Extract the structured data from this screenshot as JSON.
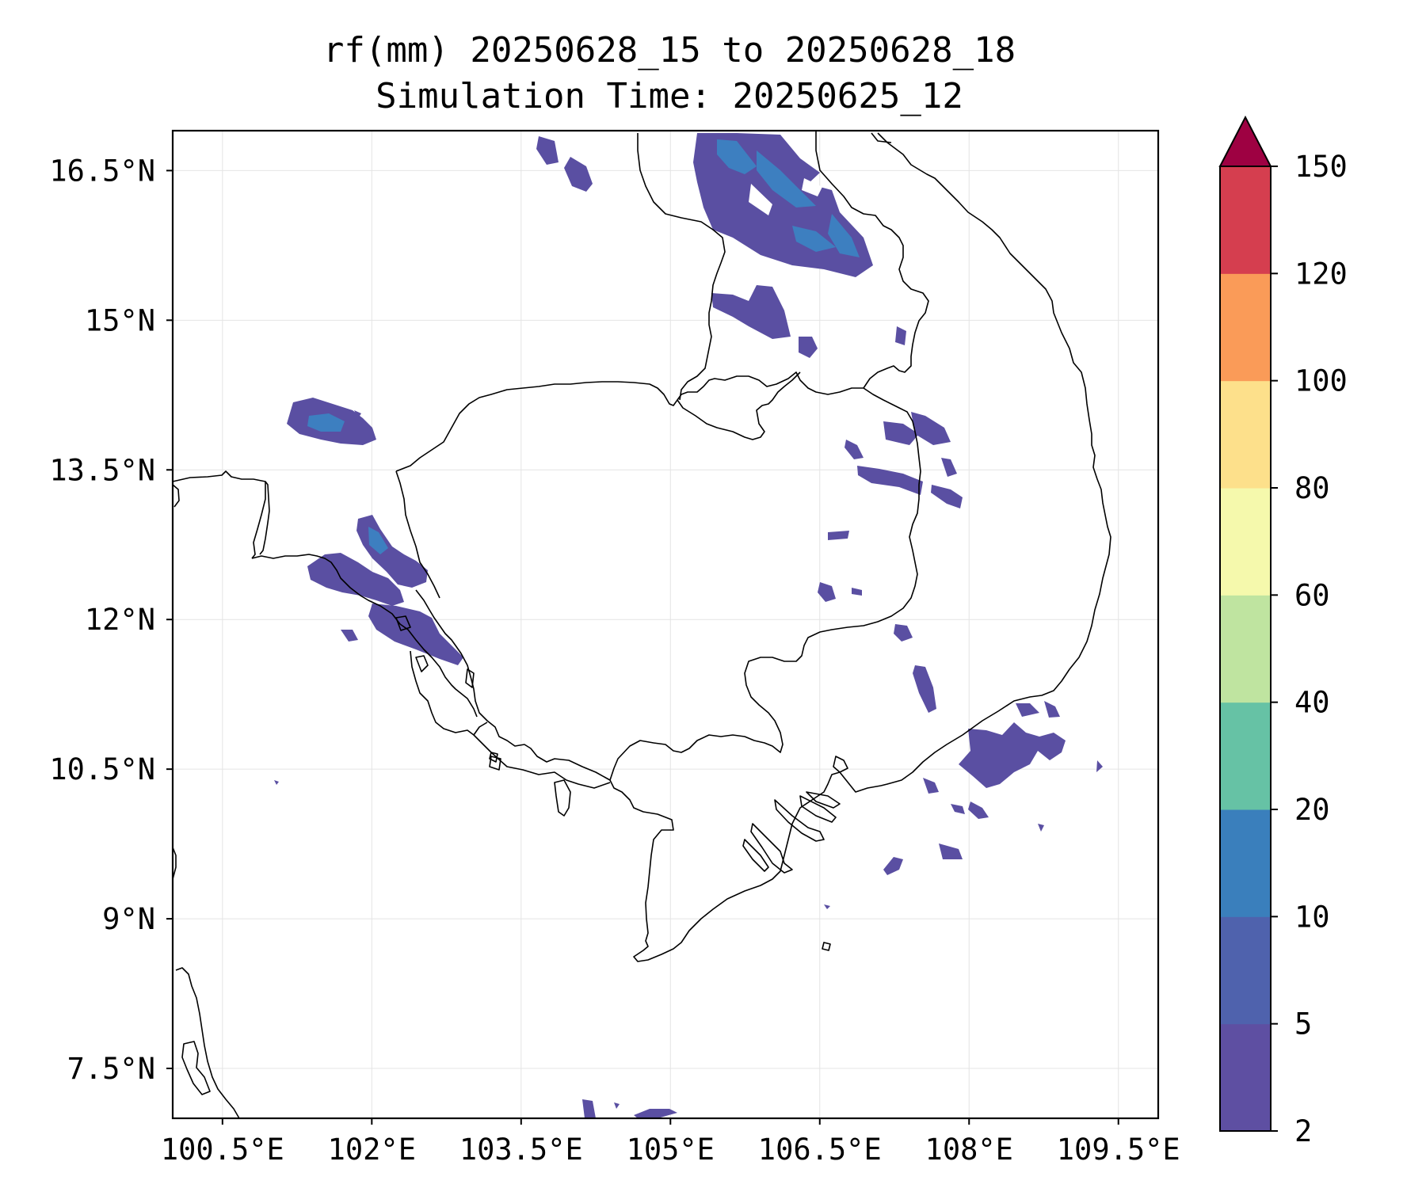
{
  "title": {
    "line1": "rf(mm) 20250628_15 to 20250628_18",
    "line2": "Simulation Time: 20250625_12"
  },
  "map": {
    "lon_range": [
      100.0,
      109.9
    ],
    "lat_range": [
      7.0,
      16.9
    ],
    "x_ticks": [
      {
        "value": 100.5,
        "label": "100.5°E"
      },
      {
        "value": 102.0,
        "label": "102°E"
      },
      {
        "value": 103.5,
        "label": "103.5°E"
      },
      {
        "value": 105.0,
        "label": "105°E"
      },
      {
        "value": 106.5,
        "label": "106.5°E"
      },
      {
        "value": 108.0,
        "label": "108°E"
      },
      {
        "value": 109.5,
        "label": "109.5°E"
      }
    ],
    "y_ticks": [
      {
        "value": 16.5,
        "label": "16.5°N"
      },
      {
        "value": 15.0,
        "label": "15°N"
      },
      {
        "value": 13.5,
        "label": "13.5°N"
      },
      {
        "value": 12.0,
        "label": "12°N"
      },
      {
        "value": 10.5,
        "label": "10.5°N"
      },
      {
        "value": 9.0,
        "label": "9°N"
      },
      {
        "value": 7.5,
        "label": "7.5°N"
      }
    ],
    "grid": true
  },
  "colorbar": {
    "levels": [
      {
        "value": 2,
        "label": "2"
      },
      {
        "value": 5,
        "label": "5"
      },
      {
        "value": 10,
        "label": "10"
      },
      {
        "value": 20,
        "label": "20"
      },
      {
        "value": 40,
        "label": "40"
      },
      {
        "value": 60,
        "label": "60"
      },
      {
        "value": 80,
        "label": "80"
      },
      {
        "value": 100,
        "label": "100"
      },
      {
        "value": 120,
        "label": "120"
      },
      {
        "value": 150,
        "label": "150"
      }
    ],
    "colors": [
      "#5e4fa2",
      "#4f62ad",
      "#3a7fbc",
      "#66c2a5",
      "#bfe4a0",
      "#f5f9ac",
      "#fde08b",
      "#fa9b58",
      "#d53e4f"
    ],
    "extend_color": "#9e0142",
    "extend": "max"
  }
}
